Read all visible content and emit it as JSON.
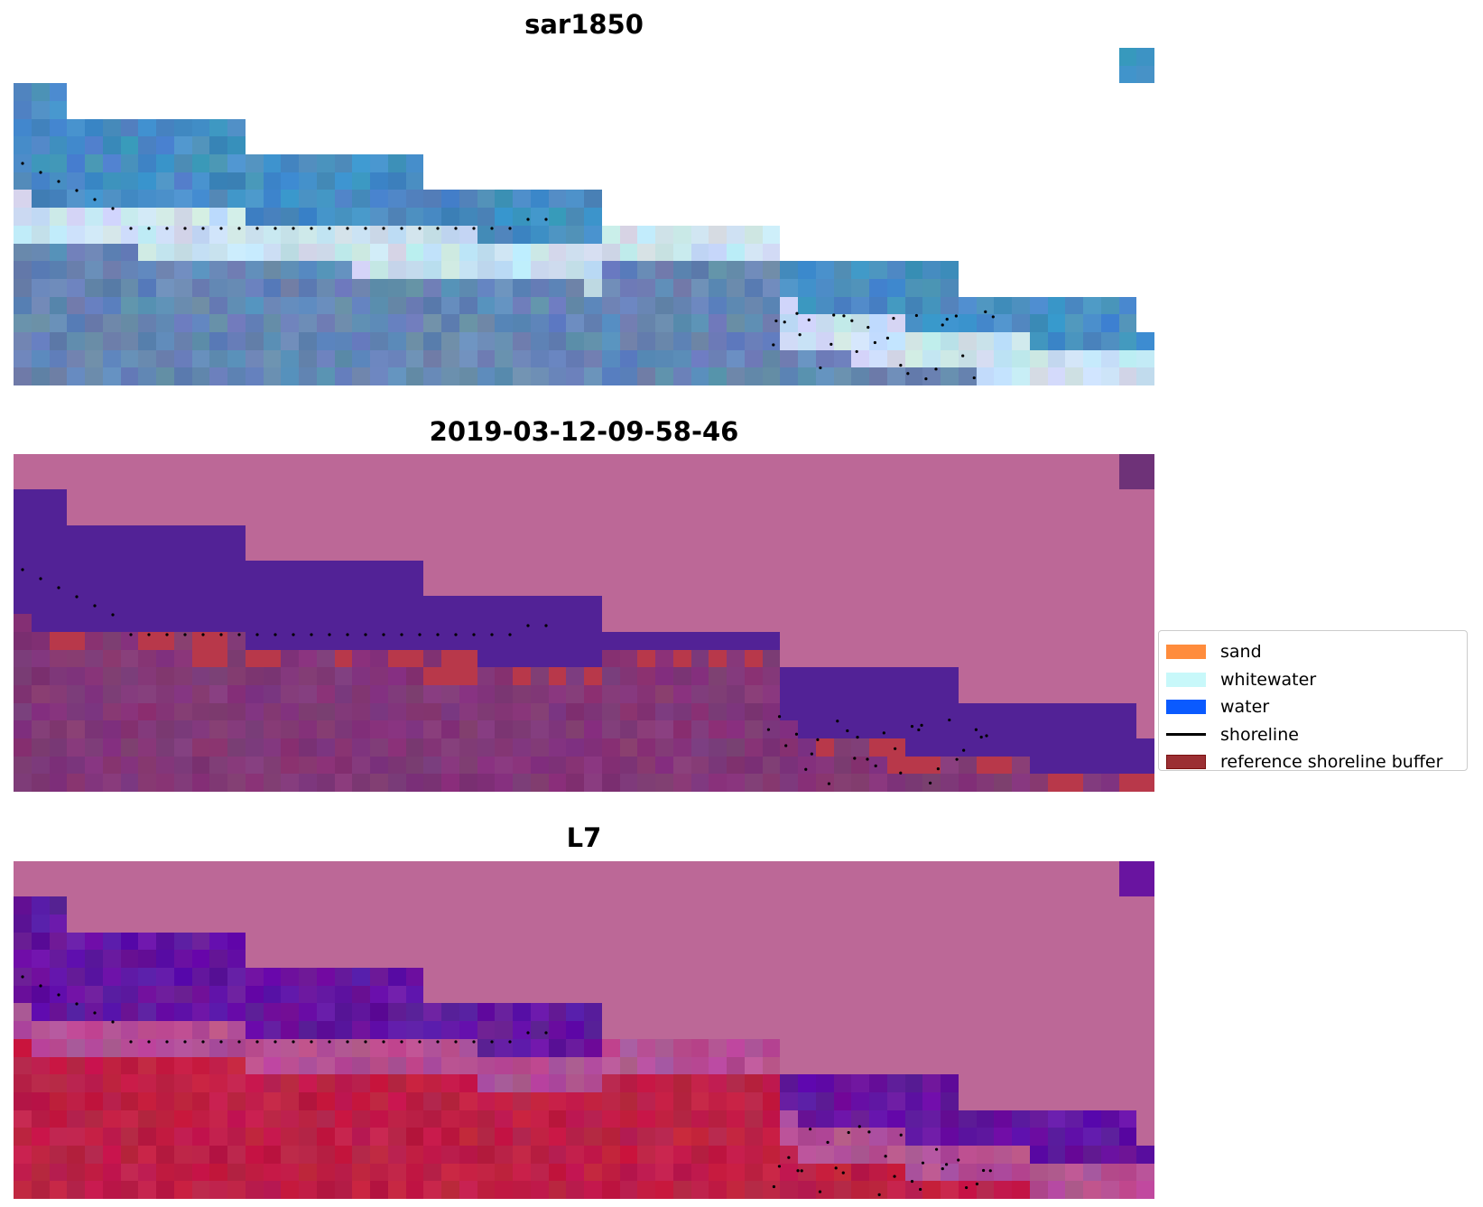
{
  "panels": [
    {
      "title": "sar1850",
      "style": "rgb"
    },
    {
      "title": "2019-03-12-09-58-46",
      "style": "classified"
    },
    {
      "title": "L7",
      "style": "index"
    }
  ],
  "legend": {
    "items": [
      {
        "label": "sand",
        "color": "#ff8c3c"
      },
      {
        "label": "whitewater",
        "color": "#c8f8fa"
      },
      {
        "label": "water",
        "color": "#0a5aff"
      },
      {
        "label": "shoreline",
        "color": "#000000"
      },
      {
        "label": "reference shoreline buffer",
        "color": "#9b2f33"
      }
    ]
  }
}
